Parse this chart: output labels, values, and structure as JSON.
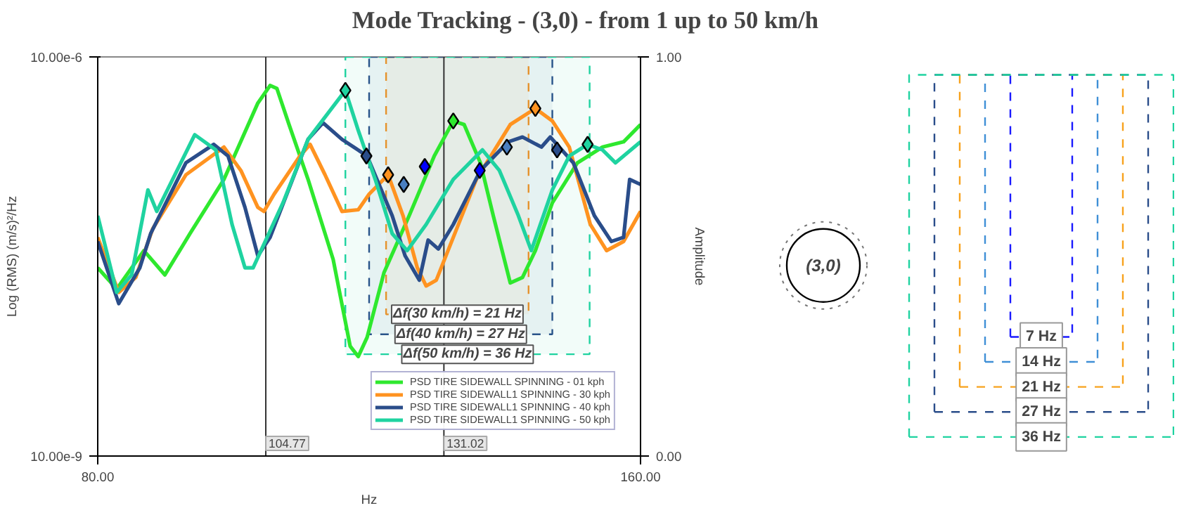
{
  "chart_data": [
    {
      "type": "line",
      "title": "Mode Tracking  - (3,0) - from 1 up to 50 km/h",
      "xlabel": "Hz",
      "ylabel": "Log (RMS) (m/s)²/Hz",
      "y2label": "Amplitude",
      "log": "y",
      "xlim": [
        80,
        160
      ],
      "xticks": [
        {
          "value": 80,
          "label": "80.00"
        },
        {
          "value": 160,
          "label": "160.00"
        }
      ],
      "ylim": [
        1e-08,
        1e-05
      ],
      "yticks": [
        {
          "value": 1e-08,
          "label": "10.00e-9"
        },
        {
          "value": 1e-05,
          "label": "10.00e-6"
        }
      ],
      "y2lim": [
        0,
        1
      ],
      "y2ticks": [
        {
          "value": 0,
          "label": "0.00"
        },
        {
          "value": 1,
          "label": "1.00"
        }
      ],
      "legend": "bottom right",
      "line_style": "solid",
      "series": [
        {
          "name": "PSD TIRE SIDEWALL SPINNING - 01 kph",
          "color": "#2ee82e",
          "x": [
            80,
            82.8,
            86.8,
            89.9,
            93.6,
            98.6,
            103.6,
            105.4,
            106.4,
            108.2,
            111.0,
            114.7,
            117.2,
            118.4,
            119.7,
            122.2,
            125.9,
            129.6,
            132.4,
            134.0,
            136.4,
            138.3,
            140.8,
            142.6,
            144.5,
            147.0,
            150.7,
            154.4,
            157.5,
            160
          ],
          "values": [
            2.6e-07,
            1.8e-07,
            3.5e-07,
            2.3e-07,
            4.7e-07,
            1.2e-06,
            4.5e-06,
            6.1e-06,
            5.8e-06,
            3.1e-06,
            1.2e-06,
            3e-07,
            6.7e-08,
            5.6e-08,
            7.8e-08,
            2.4e-07,
            6.4e-07,
            1.8e-06,
            3.3e-06,
            3.1e-06,
            1.6e-06,
            6.4e-07,
            2e-07,
            2.2e-07,
            3.5e-07,
            8e-07,
            1.6e-06,
            2.1e-06,
            2.3e-06,
            3.1e-06
          ]
        },
        {
          "name": "PSD TIRE SIDEWALL1 SPINNING - 30 kph",
          "color": "#ff9320",
          "x": [
            80,
            83.1,
            85.6,
            88.1,
            93.0,
            98.6,
            101.1,
            103.6,
            104.5,
            106.0,
            109.8,
            111.3,
            113.5,
            116.0,
            118.4,
            120.0,
            122.8,
            125.0,
            127.1,
            128.4,
            129.9,
            132.4,
            135.8,
            140.8,
            144.5,
            147.0,
            149.5,
            152.6,
            155.0,
            157.5,
            160
          ],
          "values": [
            4.4e-07,
            1.7e-07,
            2.2e-07,
            5.1e-07,
            1.3e-06,
            2.1e-06,
            1.4e-06,
            7.4e-07,
            6.9e-07,
            9.3e-07,
            1.8e-06,
            2.2e-06,
            1.3e-06,
            6.9e-07,
            7.1e-07,
            9.3e-07,
            1.3e-06,
            6.4e-07,
            2.6e-07,
            1.9e-07,
            2.1e-07,
            4.4e-07,
            1.2e-06,
            3.1e-06,
            4.1e-06,
            3.3e-06,
            2.1e-06,
            5.5e-07,
            3.5e-07,
            4.1e-07,
            6.9e-07
          ]
        },
        {
          "name": "PSD TIRE SIDEWALL1 SPINNING - 40 kph",
          "color": "#2a4d8a",
          "x": [
            80,
            83.1,
            86.2,
            87.8,
            93.0,
            97.1,
            99.2,
            101.7,
            103.6,
            105.4,
            111.0,
            113.2,
            116.0,
            119.7,
            123.4,
            125.3,
            127.4,
            128.7,
            130.2,
            132.4,
            136.4,
            140.5,
            142.6,
            145.4,
            146.7,
            150.1,
            153.2,
            155.7,
            157.5,
            158.4,
            160
          ],
          "values": [
            4.1e-07,
            1.4e-07,
            2.6e-07,
            4.7e-07,
            1.6e-06,
            2.2e-06,
            1.8e-06,
            7.4e-07,
            3.2e-07,
            4.4e-07,
            2.4e-06,
            3.2e-06,
            2.4e-06,
            1.8e-06,
            6.4e-07,
            3.2e-07,
            2.1e-07,
            4.2e-07,
            3.6e-07,
            5.5e-07,
            1.4e-06,
            2.3e-06,
            2.5e-06,
            2.1e-06,
            2.5e-06,
            1.6e-06,
            6.4e-07,
            4.1e-07,
            4.4e-07,
            1.2e-06,
            1.1e-06
          ]
        },
        {
          "name": "PSD TIRE SIDEWALL1 SPINNING - 50 kph",
          "color": "#1fd3a0",
          "x": [
            80,
            82.8,
            85.0,
            87.4,
            88.7,
            94.3,
            97.4,
            99.8,
            101.7,
            102.9,
            107.3,
            111.0,
            116.5,
            118.4,
            120.9,
            123.4,
            125.6,
            128.4,
            132.4,
            136.7,
            139.2,
            142.0,
            143.9,
            147.0,
            149.5,
            152.2,
            154.4,
            156.3,
            160
          ],
          "values": [
            6.4e-07,
            1.7e-07,
            2.3e-07,
            1e-06,
            6.9e-07,
            2.6e-06,
            2e-06,
            5.5e-07,
            2.6e-07,
            2.6e-07,
            8e-07,
            2.4e-06,
            5.6e-06,
            2.8e-06,
            1.2e-06,
            4.7e-07,
            3.5e-07,
            5.5e-07,
            1.2e-06,
            2e-06,
            1.4e-06,
            6.4e-07,
            3.5e-07,
            1e-06,
            1.8e-06,
            2.2e-06,
            2e-06,
            1.6e-06,
            2.3e-06
          ]
        },
        {
          "type": "scatter",
          "marker": "diamond",
          "color": "#1fd3a0",
          "colors": [
            "#1fd3a0",
            "#2a4d8a",
            "#ff9320",
            "#4a7fc1",
            "#0000ff",
            "#2ee82e",
            "#0000ff",
            "#4a7fc1",
            "#ff9320",
            "#2a4d8a",
            "#1fd3a0"
          ],
          "x": [
            116.5,
            119.6,
            122.8,
            125.1,
            128.2,
            132.4,
            136.3,
            140.3,
            144.5,
            147.7,
            152.2
          ],
          "values": [
            5.6e-06,
            1.8e-06,
            1.3e-06,
            1.1e-06,
            1.5e-06,
            3.3e-06,
            1.4e-06,
            2.1e-06,
            4.1e-06,
            2e-06,
            2.2e-06
          ]
        }
      ],
      "ref_lines": [
        {
          "axis": "x",
          "value": 104.77,
          "label": "104.77",
          "color": "#333333"
        },
        {
          "axis": "x",
          "value": 131.02,
          "label": "131.02",
          "color": "#333333"
        }
      ],
      "bands": [
        {
          "axis": "x",
          "from": 122.5,
          "to": 143.5,
          "label": "Δf(30 km/h) = 21 Hz",
          "color": "#ff9320"
        },
        {
          "axis": "x",
          "from": 120,
          "to": 147,
          "label": "Δf(40 km/h) = 27 Hz",
          "color": "#2a4d8a"
        },
        {
          "axis": "x",
          "from": 116.5,
          "to": 152.5,
          "label": "Δf(50 km/h) = 36 Hz",
          "color": "#1fd3a0"
        }
      ]
    },
    {
      "type": "other",
      "annotations": [
        "(3,0)",
        "7 Hz",
        "14 Hz",
        "21 Hz",
        "27 Hz",
        "36 Hz"
      ]
    }
  ]
}
